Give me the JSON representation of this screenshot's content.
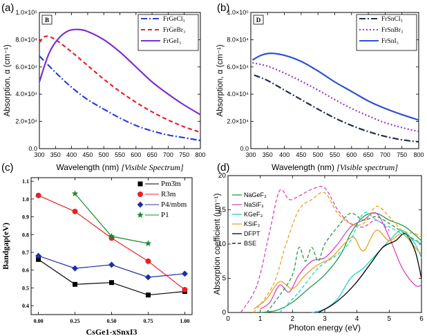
{
  "chart_data": [
    {
      "id": "a",
      "type": "line",
      "panel_label": "(a)",
      "inset_label": "B",
      "xlabel": "Wavelength (nm)",
      "xlabel_suffix": "[Visible Spectrum]",
      "ylabel": "Absorption, α (cm⁻¹)",
      "xlim": [
        300,
        800
      ],
      "ylim": [
        0,
        100000
      ],
      "xticks": [
        "300",
        "350",
        "400",
        "450",
        "500",
        "550",
        "600",
        "650",
        "700",
        "750",
        "800"
      ],
      "yticks": [
        "0.0",
        "2.0×10⁴",
        "4.0×10⁴",
        "6.0×10⁴",
        "8.0×10⁴",
        "1.0×10⁵"
      ],
      "legend_position": "top-right",
      "series": [
        {
          "name": "FrGeCl₃",
          "color": "#2b3fd4",
          "dash": "9,3,2,3",
          "x": [
            300,
            350,
            400,
            450,
            500,
            550,
            600,
            650,
            700,
            750,
            800
          ],
          "values": [
            68000,
            56000,
            45000,
            36000,
            29000,
            22500,
            17000,
            13000,
            10000,
            8000,
            6000
          ]
        },
        {
          "name": "FrGeBr₃",
          "color": "#e8202a",
          "dash": "6,4",
          "x": [
            300,
            320,
            350,
            400,
            450,
            500,
            550,
            600,
            650,
            700,
            750,
            800
          ],
          "values": [
            78000,
            82500,
            80000,
            71000,
            61000,
            51000,
            42000,
            34000,
            27000,
            21000,
            16000,
            12000
          ]
        },
        {
          "name": "FrGeI₃",
          "color": "#7b2fd4",
          "dash": "",
          "x": [
            300,
            330,
            360,
            390,
            420,
            450,
            500,
            550,
            600,
            650,
            700,
            750,
            800
          ],
          "values": [
            49000,
            70000,
            81000,
            86500,
            87500,
            86000,
            80000,
            71000,
            60000,
            49000,
            40000,
            32000,
            25000
          ]
        }
      ]
    },
    {
      "id": "b",
      "type": "line",
      "panel_label": "(b)",
      "inset_label": "D",
      "xlabel": "Wavelength (nm)",
      "xlabel_suffix": "[Visible spectrum]",
      "ylabel": "Absorption, α (cm⁻¹)",
      "xlim": [
        300,
        800
      ],
      "ylim": [
        0,
        100000
      ],
      "xticks": [
        "300",
        "350",
        "400",
        "450",
        "500",
        "550",
        "600",
        "650",
        "700",
        "750",
        "800"
      ],
      "yticks": [
        "0.0",
        "2.0×10⁴",
        "4.0×10⁴",
        "6.0×10⁴",
        "8.0×10⁴",
        "1.0×10⁵"
      ],
      "legend_position": "top-right",
      "series": [
        {
          "name": "FrSnCl₃",
          "color": "#1f2d50",
          "dash": "9,3,2,3",
          "x": [
            310,
            350,
            400,
            450,
            500,
            550,
            600,
            650,
            700,
            750,
            800
          ],
          "values": [
            54000,
            50000,
            43000,
            36000,
            29000,
            22500,
            17000,
            12500,
            9000,
            6500,
            5000
          ]
        },
        {
          "name": "FrSnBr₃",
          "color": "#a030c8",
          "dash": "2,3",
          "x": [
            305,
            350,
            400,
            450,
            500,
            550,
            600,
            650,
            700,
            750,
            800
          ],
          "values": [
            63000,
            60500,
            55500,
            49500,
            43000,
            36000,
            29500,
            24000,
            19000,
            15500,
            12500
          ]
        },
        {
          "name": "FrSnI₃",
          "color": "#2b4fd4",
          "dash": "",
          "x": [
            305,
            330,
            360,
            400,
            450,
            500,
            550,
            600,
            650,
            700,
            750,
            800
          ],
          "values": [
            65000,
            68500,
            70000,
            68500,
            64000,
            57000,
            49000,
            42000,
            35000,
            29500,
            25000,
            21000
          ]
        }
      ]
    },
    {
      "id": "c",
      "type": "line",
      "panel_label": "(c)",
      "xlabel": "CsGe1-xSnxI3",
      "ylabel": "Bandgap(eV)",
      "xlim": [
        -0.05,
        1.05
      ],
      "ylim": [
        0.35,
        1.12
      ],
      "xticks": [
        "0.00",
        "0.25",
        "0.50",
        "0.75",
        "1.00"
      ],
      "yticks": [
        "0.4",
        "0.5",
        "0.6",
        "0.7",
        "0.8",
        "0.9",
        "1.0",
        "1.1"
      ],
      "legend_position": "top-right",
      "series": [
        {
          "name": "Pm3̄m",
          "color": "#000000",
          "marker": "square",
          "x": [
            0,
            0.25,
            0.5,
            0.75,
            1.0
          ],
          "values": [
            0.66,
            0.52,
            0.53,
            0.46,
            0.48
          ]
        },
        {
          "name": "R3m",
          "color": "#e8202a",
          "marker": "circle",
          "x": [
            0,
            0.25,
            0.5,
            0.75,
            1.0
          ],
          "values": [
            1.02,
            0.93,
            0.78,
            0.65,
            0.49
          ]
        },
        {
          "name": "P4/mbm",
          "color": "#1f2fa8",
          "marker": "diamond",
          "x": [
            0,
            0.25,
            0.5,
            0.75,
            1.0
          ],
          "values": [
            0.68,
            0.61,
            0.63,
            0.56,
            0.58
          ]
        },
        {
          "name": "P1",
          "color": "#1a8a2a",
          "marker": "star",
          "x": [
            0.25,
            0.5,
            0.75
          ],
          "values": [
            1.03,
            0.79,
            0.75
          ]
        }
      ]
    },
    {
      "id": "d",
      "type": "line",
      "panel_label": "(d)",
      "xlabel": "Photon energy (eV)",
      "ylabel": "Absorption coefficient (μm⁻¹)",
      "xlim": [
        0,
        6
      ],
      "ylim": [
        0,
        20
      ],
      "xticks": [
        "0",
        "1",
        "2",
        "3",
        "4",
        "5",
        "6"
      ],
      "yticks": [
        "0",
        "5",
        "10",
        "15",
        "20"
      ],
      "legend_position": "top-left",
      "legend_extra": [
        {
          "name": "DFPT",
          "dash": ""
        },
        {
          "name": "BSE",
          "dash": "5,3"
        }
      ],
      "series": [
        {
          "name": "NaGeF₃ DFPT",
          "legend": "NaGeF₃",
          "color": "#1f9a4a",
          "dash": "",
          "x": [
            1.0,
            1.5,
            2.0,
            2.5,
            3.0,
            3.5,
            3.8,
            4.2,
            4.6,
            5.0,
            5.5,
            6.0
          ],
          "values": [
            0,
            0.3,
            1.5,
            3.5,
            5.5,
            8.5,
            11.5,
            14.0,
            14.5,
            13.5,
            12.5,
            10.5
          ]
        },
        {
          "name": "NaSiF₃ DFPT",
          "legend": "NaSiF₃",
          "color": "#e040b8",
          "dash": "",
          "x": [
            1.0,
            1.3,
            1.6,
            1.9,
            2.2,
            2.6,
            3.0,
            3.4,
            3.8,
            4.2,
            4.6,
            5.0,
            5.4,
            5.8,
            6.0
          ],
          "values": [
            0.5,
            1.5,
            4.0,
            3.0,
            5.5,
            7.5,
            8.0,
            10.0,
            12.5,
            13.5,
            14.5,
            11.0,
            6.5,
            4.0,
            4.0
          ]
        },
        {
          "name": "KGeF₃ DFPT",
          "legend": "KGeF₃",
          "color": "#20d0d0",
          "dash": "",
          "x": [
            2.6,
            3.0,
            3.4,
            3.8,
            4.2,
            4.6,
            5.0,
            5.4,
            5.8,
            6.0
          ],
          "values": [
            0,
            0.5,
            2.0,
            5.0,
            6.5,
            8.5,
            10.5,
            12.0,
            10.0,
            8.0
          ]
        },
        {
          "name": "KSiF₃ DFPT",
          "legend": "KSiF₃",
          "color": "#e8a020",
          "dash": "",
          "x": [
            0.8,
            1.2,
            1.6,
            2.0,
            2.4,
            2.8,
            3.2,
            3.6,
            3.9,
            4.2,
            4.6,
            5.0,
            5.4,
            5.8,
            6.0
          ],
          "values": [
            0.5,
            2.0,
            4.5,
            3.5,
            5.5,
            7.0,
            8.0,
            10.0,
            11.0,
            9.0,
            12.0,
            10.5,
            11.5,
            9.5,
            8.5
          ]
        },
        {
          "name": "KGeF₃ DFPT black",
          "legend": "DFPT",
          "color": "#000000",
          "dash": "",
          "x": [
            2.8,
            3.2,
            3.6,
            4.0,
            4.4,
            4.8,
            5.2,
            5.5,
            5.8,
            6.0
          ],
          "values": [
            0,
            1.0,
            2.5,
            4.5,
            7.0,
            9.5,
            10.5,
            11.5,
            9.0,
            5.0
          ]
        },
        {
          "name": "NaGeF₃ BSE",
          "legend": "",
          "color": "#1f9a4a",
          "dash": "5,3",
          "x": [
            1.2,
            1.6,
            2.0,
            2.2,
            2.4,
            2.6,
            2.8,
            3.0,
            3.4,
            3.8,
            4.2,
            4.6,
            5.0,
            5.5,
            6.0
          ],
          "values": [
            0,
            2.5,
            5.5,
            9.5,
            7.5,
            9.5,
            7.5,
            10.0,
            12.5,
            14.5,
            13.5,
            14.0,
            13.0,
            11.5,
            10.0
          ]
        },
        {
          "name": "NaSiF₃ BSE",
          "legend": "",
          "color": "#e040b8",
          "dash": "5,3",
          "x": [
            0.4,
            0.9,
            1.3,
            1.6,
            1.9,
            2.2,
            2.6,
            3.0,
            3.4,
            3.8,
            4.2,
            4.6,
            5.0
          ],
          "values": [
            0,
            4.0,
            12.0,
            17.8,
            16.5,
            17.0,
            18.0,
            18.2,
            15.0,
            13.0,
            12.5,
            13.5,
            12.0
          ]
        },
        {
          "name": "KGeF₃ BSE",
          "legend": "",
          "color": "#20d0d0",
          "dash": "5,3",
          "x": [
            1.6,
            2.2,
            2.8,
            3.4,
            3.8,
            4.2,
            4.6,
            5.0,
            5.4,
            5.8,
            6.0
          ],
          "values": [
            0,
            3.0,
            6.5,
            8.5,
            10.5,
            14.5,
            13.5,
            12.5,
            11.5,
            10.5,
            10.0
          ]
        },
        {
          "name": "KSiF₃ BSE",
          "legend": "",
          "color": "#e8a020",
          "dash": "5,3",
          "x": [
            0.8,
            1.4,
            1.8,
            2.2,
            2.6,
            3.0,
            3.4,
            3.8,
            4.2,
            4.6,
            5.0,
            5.4,
            5.8,
            6.0
          ],
          "values": [
            0,
            4.0,
            10.0,
            15.0,
            16.5,
            17.5,
            14.5,
            13.0,
            13.0,
            15.5,
            14.0,
            12.0,
            11.5,
            11.0
          ]
        }
      ]
    }
  ]
}
